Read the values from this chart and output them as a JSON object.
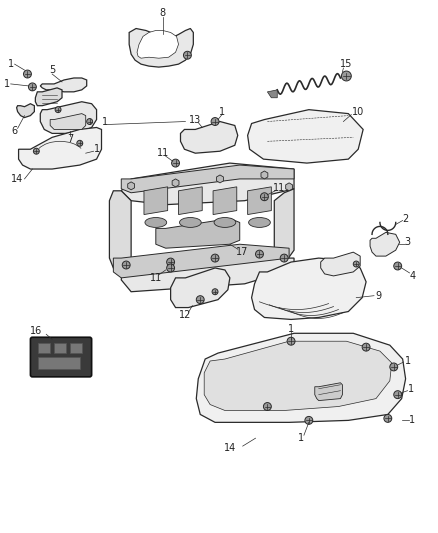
{
  "background_color": "#ffffff",
  "figure_width": 4.38,
  "figure_height": 5.33,
  "dpi": 100,
  "line_color": "#2a2a2a",
  "label_fontsize": 7.0,
  "label_color": "#222222",
  "part_fill": "#f0f0f0",
  "part_fill2": "#e8e8e8",
  "part_fill3": "#dcdcdc"
}
